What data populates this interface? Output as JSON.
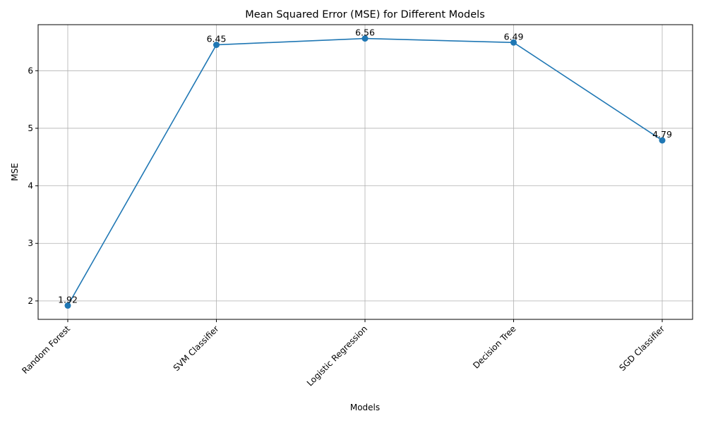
{
  "chart_data": {
    "type": "line",
    "title": "Mean Squared Error (MSE) for Different Models",
    "xlabel": "Models",
    "ylabel": "MSE",
    "categories": [
      "Random Forest",
      "SVM Classifier",
      "Logistic Regression",
      "Decision Tree",
      "SGD Classifier"
    ],
    "values": [
      1.92,
      6.45,
      6.56,
      6.49,
      4.79
    ],
    "data_labels": [
      "1.92",
      "6.45",
      "6.56",
      "6.49",
      "4.79"
    ],
    "yticks": [
      "2",
      "3",
      "4",
      "5",
      "6"
    ],
    "ylim": [
      1.68,
      6.8
    ],
    "grid": true,
    "line_color": "#1f77b4",
    "marker": "circle"
  }
}
